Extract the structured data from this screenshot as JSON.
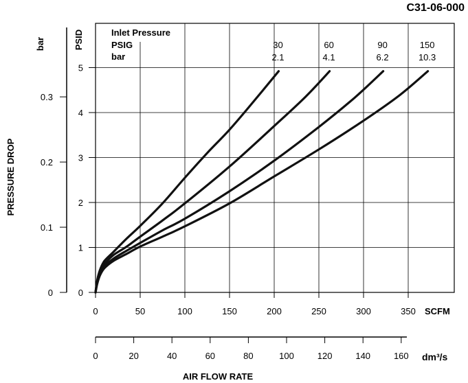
{
  "figure_code": "C31-06-000",
  "chart_data": {
    "type": "line",
    "title": "",
    "xlabel": "AIR FLOW RATE",
    "x_unit_primary": "SCFM",
    "x_unit_secondary": "dm³/s",
    "ylabel": "PRESSURE DROP",
    "y_unit_primary": "PSID",
    "y_unit_secondary": "bar",
    "xlim": [
      0,
      400
    ],
    "ylim": [
      0,
      6
    ],
    "x_ticks": [
      0,
      50,
      100,
      150,
      200,
      250,
      300,
      350
    ],
    "y_ticks": [
      0,
      1,
      2,
      3,
      4,
      5
    ],
    "x2_ticks": [
      0,
      20,
      40,
      60,
      80,
      100,
      120,
      140,
      160
    ],
    "y2_ticks": [
      0,
      0.1,
      0.2,
      0.3
    ],
    "grid": true,
    "legend": {
      "title": "Inlet Pressure",
      "row1_label": "PSIG",
      "row2_label": "bar",
      "placement": "top"
    },
    "series": [
      {
        "name": "30",
        "name_bar": "2.1",
        "x": [
          0,
          2,
          5,
          10,
          20,
          35,
          50,
          75,
          100,
          125,
          150,
          175,
          205
        ],
        "y": [
          0,
          0.28,
          0.5,
          0.7,
          0.9,
          1.2,
          1.48,
          1.98,
          2.55,
          3.1,
          3.62,
          4.2,
          4.92
        ]
      },
      {
        "name": "60",
        "name_bar": "4.1",
        "x": [
          0,
          2,
          5,
          10,
          20,
          35,
          50,
          75,
          100,
          150,
          200,
          235,
          262
        ],
        "y": [
          0,
          0.25,
          0.45,
          0.63,
          0.83,
          1.02,
          1.24,
          1.6,
          1.98,
          2.8,
          3.7,
          4.35,
          4.92
        ]
      },
      {
        "name": "90",
        "name_bar": "6.2",
        "x": [
          0,
          2,
          5,
          10,
          20,
          35,
          50,
          75,
          100,
          150,
          200,
          250,
          290,
          322
        ],
        "y": [
          0,
          0.22,
          0.4,
          0.58,
          0.75,
          0.93,
          1.1,
          1.38,
          1.64,
          2.25,
          2.93,
          3.68,
          4.33,
          4.92
        ]
      },
      {
        "name": "150",
        "name_bar": "10.3",
        "x": [
          0,
          2,
          5,
          10,
          20,
          35,
          50,
          75,
          100,
          150,
          200,
          250,
          300,
          340,
          372
        ],
        "y": [
          0,
          0.2,
          0.38,
          0.54,
          0.7,
          0.86,
          1.02,
          1.24,
          1.47,
          1.98,
          2.58,
          3.18,
          3.82,
          4.38,
          4.92
        ]
      }
    ]
  }
}
